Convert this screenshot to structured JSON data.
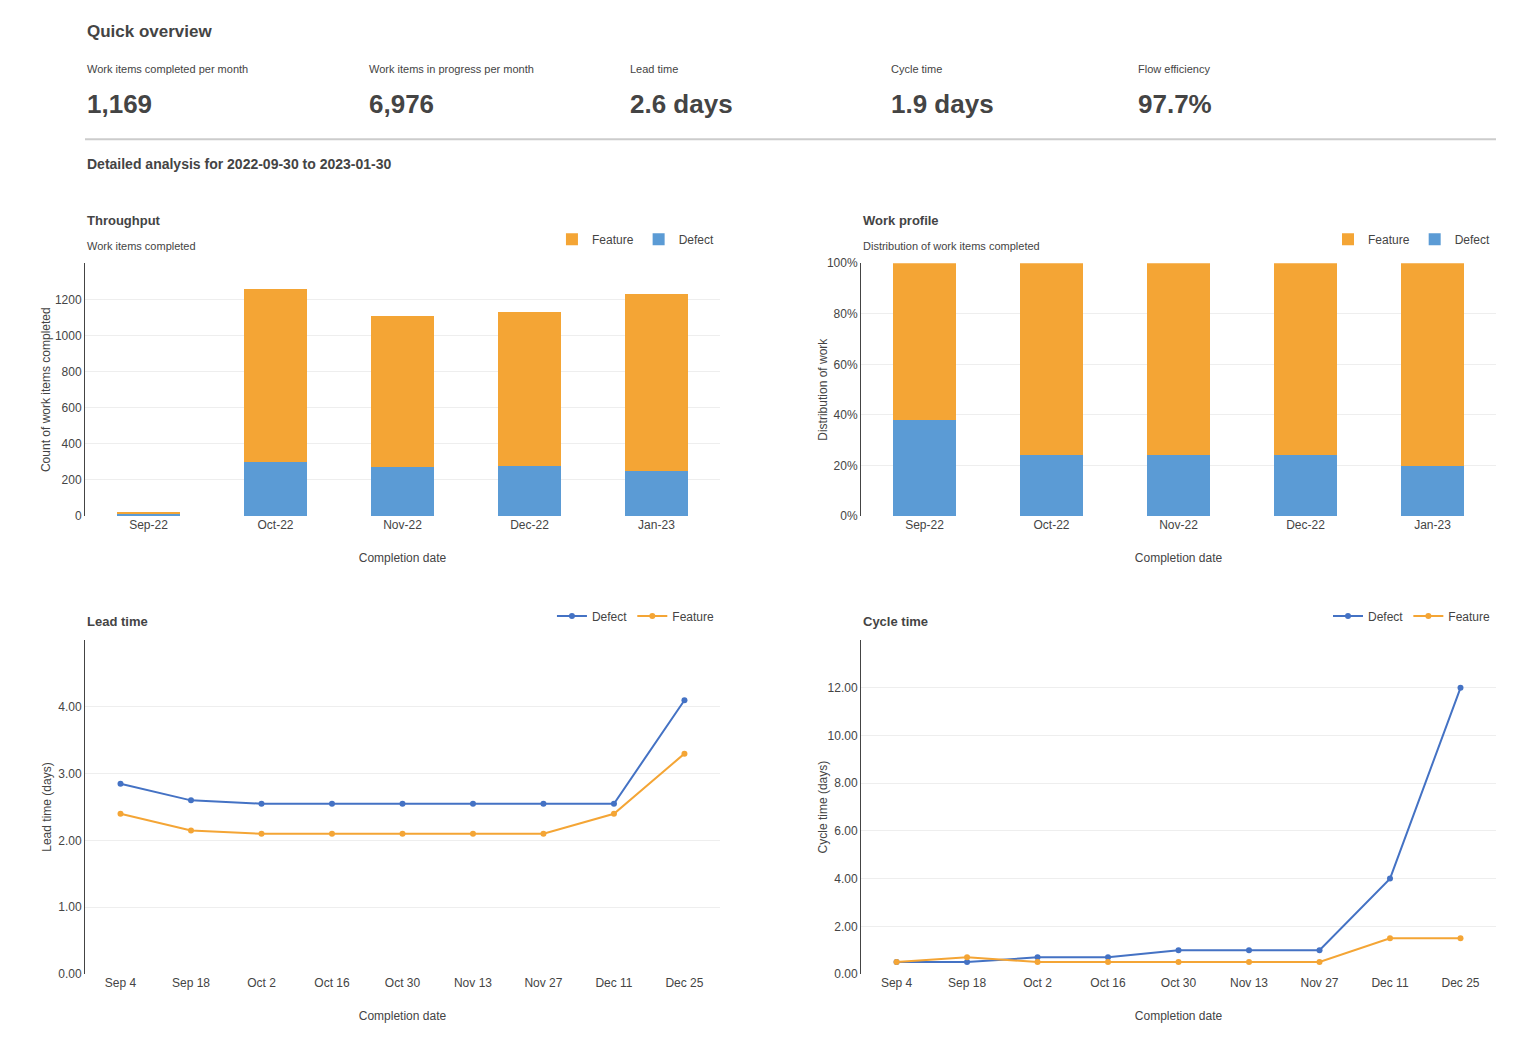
{
  "title": "Quick overview",
  "metrics": [
    {
      "label": "Work items completed per month",
      "value": "1,169"
    },
    {
      "label": "Work items in progress per month",
      "value": "6,976"
    },
    {
      "label": "Lead time",
      "value": "2.6 days"
    },
    {
      "label": "Cycle time",
      "value": "1.9 days"
    },
    {
      "label": "Flow efficiency",
      "value": "97.7%"
    }
  ],
  "subtitle": "Detailed analysis for 2022-09-30 to 2023-01-30",
  "chart_data": [
    {
      "type": "bar",
      "title": "Throughput",
      "subtitle": "Work items completed",
      "xlabel": "Completion date",
      "ylabel": "Count of work items completed",
      "categories": [
        "Sep-22",
        "Oct-22",
        "Nov-22",
        "Dec-22",
        "Jan-23"
      ],
      "series": [
        {
          "name": "Defect",
          "color": "#5b9bd5",
          "values": [
            10,
            300,
            270,
            280,
            250
          ]
        },
        {
          "name": "Feature",
          "color": "#f4a535",
          "values": [
            15,
            960,
            840,
            850,
            980
          ]
        }
      ],
      "stacked": true,
      "ylim": [
        0,
        1400
      ],
      "yticks": [
        0,
        200,
        400,
        600,
        800,
        1000,
        1200
      ],
      "grid": true,
      "legend": "upper right"
    },
    {
      "type": "bar",
      "title": "Work profile",
      "subtitle": "Distribution of work items completed",
      "xlabel": "Completion date",
      "ylabel": "Distribution of work",
      "categories": [
        "Sep-22",
        "Oct-22",
        "Nov-22",
        "Dec-22",
        "Jan-23"
      ],
      "series": [
        {
          "name": "Defect",
          "color": "#5b9bd5",
          "values": [
            38,
            24,
            24,
            24,
            20
          ]
        },
        {
          "name": "Feature",
          "color": "#f4a535",
          "values": [
            62,
            76,
            76,
            76,
            80
          ]
        }
      ],
      "stacked": true,
      "ylim": [
        0,
        100
      ],
      "yticks": [
        {
          "value": 0,
          "label": "0%"
        },
        {
          "value": 20,
          "label": "20%"
        },
        {
          "value": 40,
          "label": "40%"
        },
        {
          "value": 60,
          "label": "60%"
        },
        {
          "value": 80,
          "label": "80%"
        },
        {
          "value": 100,
          "label": "100%"
        }
      ],
      "grid": true,
      "legend": "upper right"
    },
    {
      "type": "line",
      "title": "Lead time",
      "xlabel": "Completion date",
      "ylabel": "Lead time (days)",
      "categories": [
        "Sep 4",
        "Sep 18",
        "Oct 2",
        "Oct 16",
        "Oct 30",
        "Nov 13",
        "Nov 27",
        "Dec 11",
        "Dec 25"
      ],
      "series": [
        {
          "name": "Defect",
          "color": "#4472c4",
          "marker": "circle",
          "values": [
            2.85,
            2.6,
            2.55,
            2.55,
            2.55,
            2.55,
            2.55,
            2.55,
            4.1
          ]
        },
        {
          "name": "Feature",
          "color": "#f4a535",
          "marker": "circle",
          "values": [
            2.4,
            2.15,
            2.1,
            2.1,
            2.1,
            2.1,
            2.1,
            2.4,
            3.3
          ]
        }
      ],
      "ylim": [
        0,
        5
      ],
      "yticks": [
        {
          "value": 0.0,
          "label": "0.00"
        },
        {
          "value": 1.0,
          "label": "1.00"
        },
        {
          "value": 2.0,
          "label": "2.00"
        },
        {
          "value": 3.0,
          "label": "3.00"
        },
        {
          "value": 4.0,
          "label": "4.00"
        }
      ],
      "grid": true,
      "legend": "upper right"
    },
    {
      "type": "line",
      "title": "Cycle time",
      "xlabel": "Completion date",
      "ylabel": "Cycle time (days)",
      "categories": [
        "Sep 4",
        "Sep 18",
        "Oct 2",
        "Oct 16",
        "Oct 30",
        "Nov 13",
        "Nov 27",
        "Dec 11",
        "Dec 25"
      ],
      "series": [
        {
          "name": "Defect",
          "color": "#4472c4",
          "marker": "circle",
          "values": [
            0.5,
            0.5,
            0.7,
            0.7,
            1.0,
            1.0,
            1.0,
            4.0,
            12.0
          ]
        },
        {
          "name": "Feature",
          "color": "#f4a535",
          "marker": "circle",
          "values": [
            0.5,
            0.7,
            0.5,
            0.5,
            0.5,
            0.5,
            0.5,
            1.5,
            1.5
          ]
        }
      ],
      "ylim": [
        0,
        14
      ],
      "yticks": [
        {
          "value": 0.0,
          "label": "0.00"
        },
        {
          "value": 2.0,
          "label": "2.00"
        },
        {
          "value": 4.0,
          "label": "4.00"
        },
        {
          "value": 6.0,
          "label": "6.00"
        },
        {
          "value": 8.0,
          "label": "8.00"
        },
        {
          "value": 10.0,
          "label": "10.00"
        },
        {
          "value": 12.0,
          "label": "12.00"
        }
      ],
      "grid": true,
      "legend": "upper right"
    }
  ]
}
